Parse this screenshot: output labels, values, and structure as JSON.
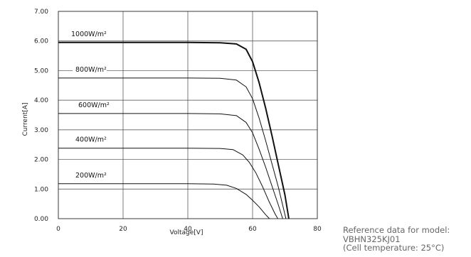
{
  "chart_data": {
    "type": "line",
    "title": "",
    "xlabel": "Voltage[V]",
    "ylabel": "Current[A]",
    "xlim": [
      0,
      80
    ],
    "ylim": [
      0,
      7
    ],
    "xticks": [
      "0",
      "20",
      "40",
      "60",
      "80"
    ],
    "yticks": [
      "0.00",
      "1.00",
      "2.00",
      "3.00",
      "4.00",
      "5.00",
      "6.00",
      "7.00"
    ],
    "grid": true,
    "series": [
      {
        "name": "1000W/m²",
        "points": [
          [
            0,
            5.95
          ],
          [
            40,
            5.95
          ],
          [
            50,
            5.94
          ],
          [
            55,
            5.9
          ],
          [
            58,
            5.72
          ],
          [
            60,
            5.3
          ],
          [
            62,
            4.6
          ],
          [
            64,
            3.75
          ],
          [
            66,
            2.8
          ],
          [
            68,
            1.8
          ],
          [
            70,
            0.8
          ],
          [
            71.2,
            0
          ]
        ],
        "stroke": 2.0
      },
      {
        "name": "800W/m²",
        "points": [
          [
            0,
            4.75
          ],
          [
            40,
            4.75
          ],
          [
            50,
            4.74
          ],
          [
            55,
            4.68
          ],
          [
            58,
            4.45
          ],
          [
            60,
            4.05
          ],
          [
            62,
            3.4
          ],
          [
            64,
            2.65
          ],
          [
            66,
            1.85
          ],
          [
            68,
            1.05
          ],
          [
            70.3,
            0
          ]
        ],
        "stroke": 1.0
      },
      {
        "name": "600W/m²",
        "points": [
          [
            0,
            3.55
          ],
          [
            40,
            3.55
          ],
          [
            50,
            3.54
          ],
          [
            55,
            3.48
          ],
          [
            58,
            3.25
          ],
          [
            60,
            2.9
          ],
          [
            62,
            2.35
          ],
          [
            64,
            1.75
          ],
          [
            66,
            1.1
          ],
          [
            68,
            0.45
          ],
          [
            69.3,
            0
          ]
        ],
        "stroke": 1.0
      },
      {
        "name": "400W/m²",
        "points": [
          [
            0,
            2.38
          ],
          [
            40,
            2.38
          ],
          [
            50,
            2.37
          ],
          [
            54,
            2.33
          ],
          [
            57,
            2.15
          ],
          [
            59,
            1.9
          ],
          [
            61,
            1.55
          ],
          [
            63,
            1.1
          ],
          [
            65,
            0.6
          ],
          [
            67,
            0.15
          ],
          [
            67.8,
            0
          ]
        ],
        "stroke": 1.0
      },
      {
        "name": "200W/m²",
        "points": [
          [
            0,
            1.18
          ],
          [
            40,
            1.18
          ],
          [
            48,
            1.17
          ],
          [
            52,
            1.13
          ],
          [
            55,
            1.02
          ],
          [
            58,
            0.82
          ],
          [
            60,
            0.62
          ],
          [
            62,
            0.4
          ],
          [
            64,
            0.14
          ],
          [
            65.2,
            0
          ]
        ],
        "stroke": 1.0
      }
    ]
  },
  "note": {
    "line1": "Reference data for model:",
    "line2": "VBHN325KJ01",
    "line3": "(Cell temperature: 25°C)"
  }
}
